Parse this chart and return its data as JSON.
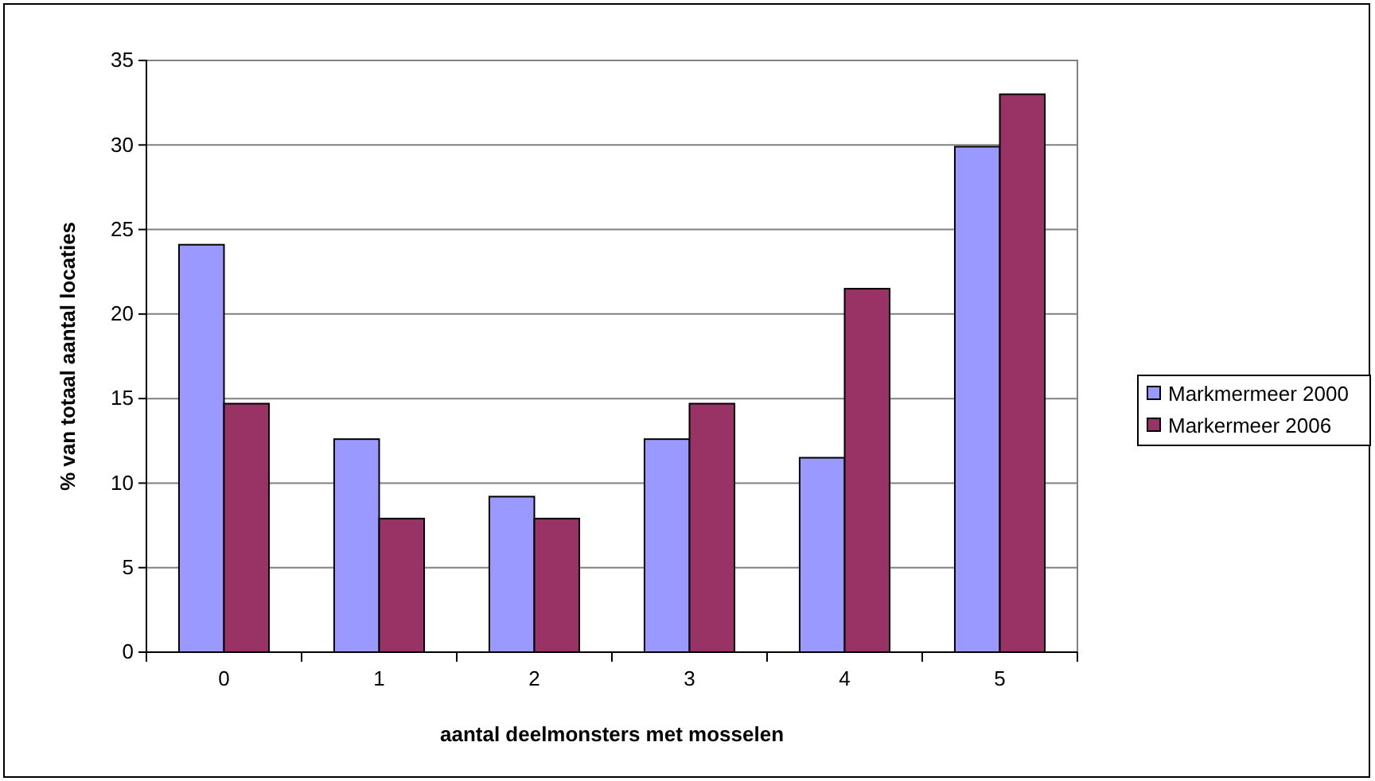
{
  "chart_data": {
    "type": "bar",
    "xlabel": "aantal deelmonsters met mosselen",
    "ylabel": "% van totaal aantal locaties",
    "categories": [
      "0",
      "1",
      "2",
      "3",
      "4",
      "5"
    ],
    "series": [
      {
        "name": "Markmermeer 2000",
        "color": "#9999ff",
        "values": [
          24.1,
          12.6,
          9.2,
          12.6,
          11.5,
          29.9
        ]
      },
      {
        "name": "Markermeer 2006",
        "color": "#993366",
        "values": [
          14.7,
          7.9,
          7.9,
          14.7,
          21.5,
          33.0
        ]
      }
    ],
    "ylim": [
      0,
      35
    ],
    "yticks": [
      0,
      5,
      10,
      15,
      20,
      25,
      30,
      35
    ],
    "grid": "y",
    "legend": "right"
  }
}
